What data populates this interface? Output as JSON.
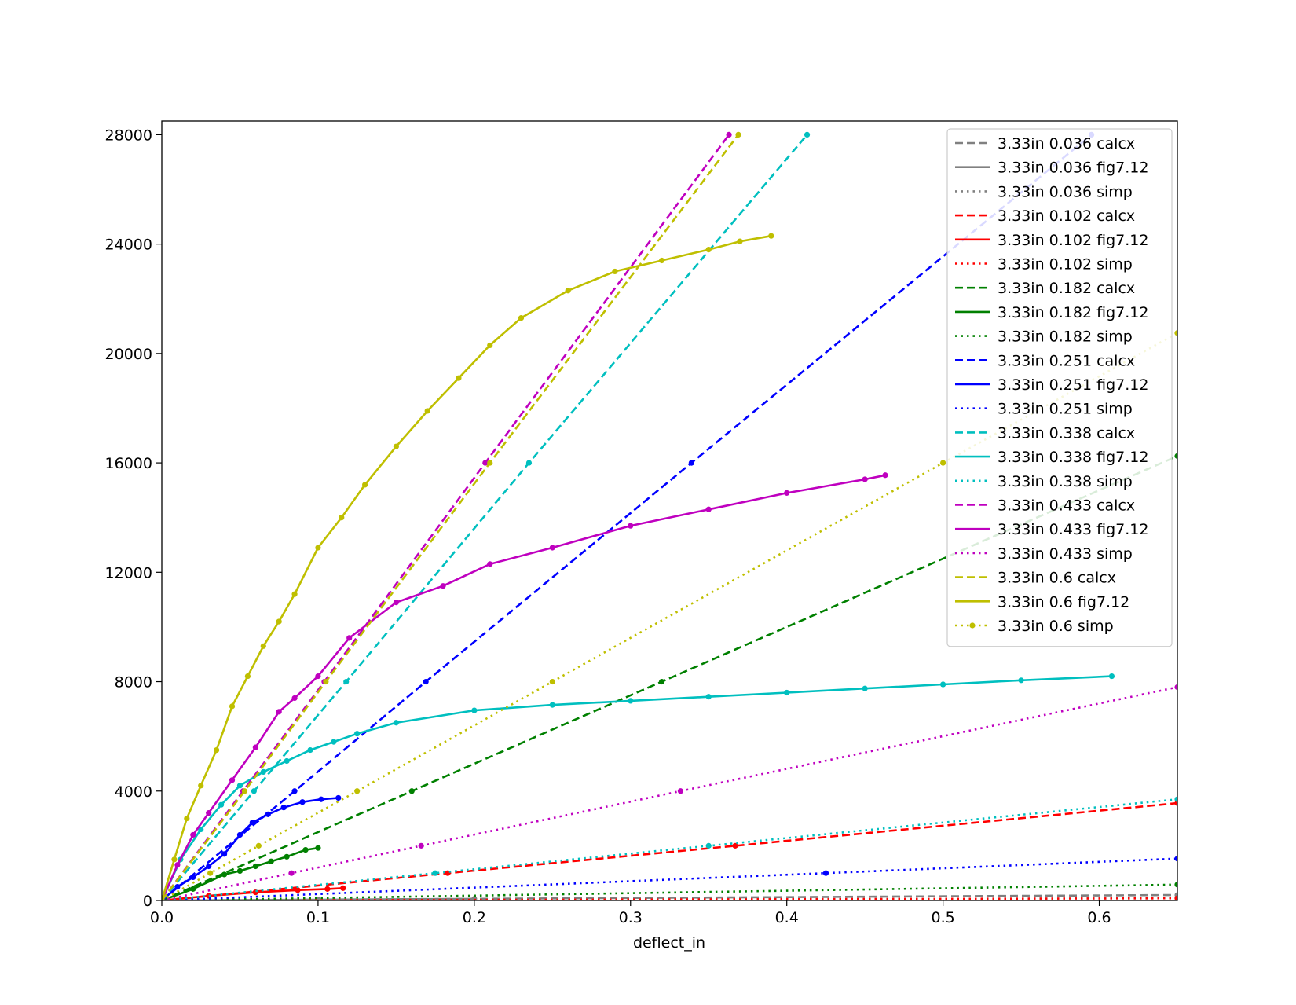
{
  "chart_data": {
    "type": "line",
    "title": "",
    "xlabel": "deflect_in",
    "ylabel": "",
    "xlim": [
      0.0,
      0.65
    ],
    "ylim": [
      0,
      28500
    ],
    "xticks": [
      0.0,
      0.1,
      0.2,
      0.3,
      0.4,
      0.5,
      0.6
    ],
    "xtick_labels": [
      "0.0",
      "0.1",
      "0.2",
      "0.3",
      "0.4",
      "0.5",
      "0.6"
    ],
    "yticks": [
      0,
      4000,
      8000,
      12000,
      16000,
      20000,
      24000,
      28000
    ],
    "ytick_labels": [
      "0",
      "4000",
      "8000",
      "12000",
      "16000",
      "20000",
      "24000",
      "28000"
    ],
    "grid": false,
    "legend_position": "top-right",
    "series": [
      {
        "name": "3.33in 0.036 calcx",
        "color": "#808080",
        "style": "dashed",
        "marker": true,
        "x": [
          0,
          0.65
        ],
        "y": [
          0,
          200
        ]
      },
      {
        "name": "3.33in 0.036 fig7.12",
        "color": "#808080",
        "style": "solid",
        "marker": true,
        "x": [
          0,
          0.1,
          0.2
        ],
        "y": [
          0,
          30,
          60
        ]
      },
      {
        "name": "3.33in 0.036 simp",
        "color": "#808080",
        "style": "dotted",
        "marker": true,
        "x": [
          0,
          0.65
        ],
        "y": [
          0,
          80
        ]
      },
      {
        "name": "3.33in 0.102 calcx",
        "color": "#ff0000",
        "style": "dashed",
        "marker": true,
        "x": [
          0,
          0.183,
          0.367,
          0.65
        ],
        "y": [
          0,
          1000,
          2000,
          3560
        ]
      },
      {
        "name": "3.33in 0.102 fig7.12",
        "color": "#ff0000",
        "style": "solid",
        "marker": true,
        "x": [
          0,
          0.03,
          0.06,
          0.087,
          0.106,
          0.116
        ],
        "y": [
          0,
          170,
          300,
          380,
          420,
          450
        ]
      },
      {
        "name": "3.33in 0.102 simp",
        "color": "#ff0000",
        "style": "dotted",
        "marker": true,
        "x": [
          0,
          0.65
        ],
        "y": [
          0,
          80
        ]
      },
      {
        "name": "3.33in 0.182 calcx",
        "color": "#008000",
        "style": "dashed",
        "marker": true,
        "x": [
          0,
          0.16,
          0.32,
          0.65
        ],
        "y": [
          0,
          4000,
          8000,
          16250
        ]
      },
      {
        "name": "3.33in 0.182 fig7.12",
        "color": "#008000",
        "style": "solid",
        "marker": true,
        "x": [
          0,
          0.02,
          0.04,
          0.05,
          0.06,
          0.07,
          0.08,
          0.092,
          0.1
        ],
        "y": [
          0,
          420,
          950,
          1080,
          1250,
          1430,
          1600,
          1850,
          1920
        ]
      },
      {
        "name": "3.33in 0.182 simp",
        "color": "#008000",
        "style": "dotted",
        "marker": true,
        "x": [
          0,
          0.65
        ],
        "y": [
          0,
          580
        ]
      },
      {
        "name": "3.33in 0.251 calcx",
        "color": "#0000ff",
        "style": "dashed",
        "marker": true,
        "x": [
          0,
          0.085,
          0.169,
          0.339,
          0.595
        ],
        "y": [
          0,
          4000,
          8000,
          16000,
          28000
        ]
      },
      {
        "name": "3.33in 0.251 fig7.12",
        "color": "#0000ff",
        "style": "solid",
        "marker": true,
        "x": [
          0,
          0.01,
          0.02,
          0.03,
          0.04,
          0.05,
          0.058,
          0.068,
          0.078,
          0.09,
          0.102,
          0.113
        ],
        "y": [
          0,
          500,
          850,
          1250,
          1700,
          2400,
          2850,
          3150,
          3400,
          3600,
          3700,
          3750
        ]
      },
      {
        "name": "3.33in 0.251 simp",
        "color": "#0000ff",
        "style": "dotted",
        "marker": true,
        "x": [
          0,
          0.425,
          0.65
        ],
        "y": [
          0,
          1000,
          1530
        ]
      },
      {
        "name": "3.33in 0.338 calcx",
        "color": "#00bfbf",
        "style": "dashed",
        "marker": true,
        "x": [
          0,
          0.059,
          0.118,
          0.235,
          0.413
        ],
        "y": [
          0,
          4000,
          8000,
          16000,
          28000
        ]
      },
      {
        "name": "3.33in 0.338 fig7.12",
        "color": "#00bfbf",
        "style": "solid",
        "marker": true,
        "x": [
          0,
          0.012,
          0.025,
          0.038,
          0.05,
          0.065,
          0.08,
          0.095,
          0.11,
          0.125,
          0.15,
          0.2,
          0.25,
          0.3,
          0.35,
          0.4,
          0.45,
          0.5,
          0.55,
          0.608
        ],
        "y": [
          0,
          1500,
          2600,
          3500,
          4200,
          4700,
          5100,
          5500,
          5800,
          6100,
          6500,
          6950,
          7150,
          7300,
          7450,
          7600,
          7750,
          7900,
          8050,
          8200
        ]
      },
      {
        "name": "3.33in 0.338 simp",
        "color": "#00bfbf",
        "style": "dotted",
        "marker": true,
        "x": [
          0,
          0.175,
          0.35,
          0.65
        ],
        "y": [
          0,
          1000,
          2000,
          3700
        ]
      },
      {
        "name": "3.33in 0.433 calcx",
        "color": "#bf00bf",
        "style": "dashed",
        "marker": true,
        "x": [
          0,
          0.052,
          0.104,
          0.207,
          0.363
        ],
        "y": [
          0,
          4000,
          8000,
          16000,
          28000
        ]
      },
      {
        "name": "3.33in 0.433 fig7.12",
        "color": "#bf00bf",
        "style": "solid",
        "marker": true,
        "x": [
          0,
          0.01,
          0.02,
          0.03,
          0.045,
          0.06,
          0.075,
          0.085,
          0.1,
          0.12,
          0.15,
          0.18,
          0.21,
          0.25,
          0.3,
          0.35,
          0.4,
          0.45,
          0.463
        ],
        "y": [
          0,
          1300,
          2400,
          3200,
          4400,
          5600,
          6900,
          7400,
          8200,
          9600,
          10900,
          11500,
          12300,
          12900,
          13700,
          14300,
          14900,
          15400,
          15550
        ]
      },
      {
        "name": "3.33in 0.433 simp",
        "color": "#bf00bf",
        "style": "dotted",
        "marker": true,
        "x": [
          0,
          0.083,
          0.166,
          0.332,
          0.65
        ],
        "y": [
          0,
          1000,
          2000,
          4000,
          7800
        ]
      },
      {
        "name": "3.33in 0.6 calcx",
        "color": "#bfbf00",
        "style": "dashed",
        "marker": true,
        "x": [
          0,
          0.053,
          0.105,
          0.21,
          0.369
        ],
        "y": [
          0,
          4000,
          8000,
          16000,
          28000
        ]
      },
      {
        "name": "3.33in 0.6 fig7.12",
        "color": "#bfbf00",
        "style": "solid",
        "marker": true,
        "x": [
          0,
          0.008,
          0.016,
          0.025,
          0.035,
          0.045,
          0.055,
          0.065,
          0.075,
          0.085,
          0.1,
          0.115,
          0.13,
          0.15,
          0.17,
          0.19,
          0.21,
          0.23,
          0.26,
          0.29,
          0.32,
          0.35,
          0.37,
          0.39
        ],
        "y": [
          0,
          1500,
          3000,
          4200,
          5500,
          7100,
          8200,
          9300,
          10200,
          11200,
          12900,
          14000,
          15200,
          16600,
          17900,
          19100,
          20300,
          21300,
          22300,
          23000,
          23400,
          23800,
          24100,
          24300
        ]
      },
      {
        "name": "3.33in 0.6 simp",
        "color": "#bfbf00",
        "style": "dotted",
        "marker": true,
        "x": [
          0,
          0.031,
          0.062,
          0.125,
          0.25,
          0.5,
          0.65
        ],
        "y": [
          0,
          1000,
          2000,
          4000,
          8000,
          16000,
          20750
        ]
      }
    ]
  }
}
